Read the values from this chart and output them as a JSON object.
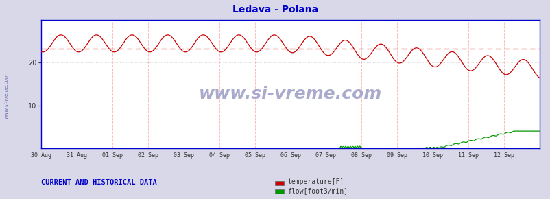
{
  "title": "Ledava - Polana",
  "title_color": "#0000cc",
  "bg_color": "#d8d8e8",
  "plot_bg_color": "#ffffff",
  "yticks": [
    10,
    20
  ],
  "ylim": [
    0,
    30
  ],
  "n_days": 14,
  "date_labels": [
    "30 Aug",
    "31 Aug",
    "01 Sep",
    "02 Sep",
    "03 Sep",
    "04 Sep",
    "05 Sep",
    "06 Sep",
    "07 Sep",
    "08 Sep",
    "09 Sep",
    "10 Sep",
    "11 Sep",
    "12 Sep"
  ],
  "hline_value": 23.3,
  "hline_color": "#dd0000",
  "temp_color": "#cc0000",
  "flow_color": "#009900",
  "axis_color": "#0000cc",
  "vgrid_color": "#ffbbbb",
  "hgrid_color": "#cccccc",
  "watermark": "www.si-vreme.com",
  "watermark_color": "#aaaacc",
  "legend_temp": "temperature[F]",
  "legend_flow": "flow[foot3/min]",
  "footer_text": "CURRENT AND HISTORICAL DATA",
  "footer_color": "#0000cc",
  "side_label": "www.si-vreme.com"
}
